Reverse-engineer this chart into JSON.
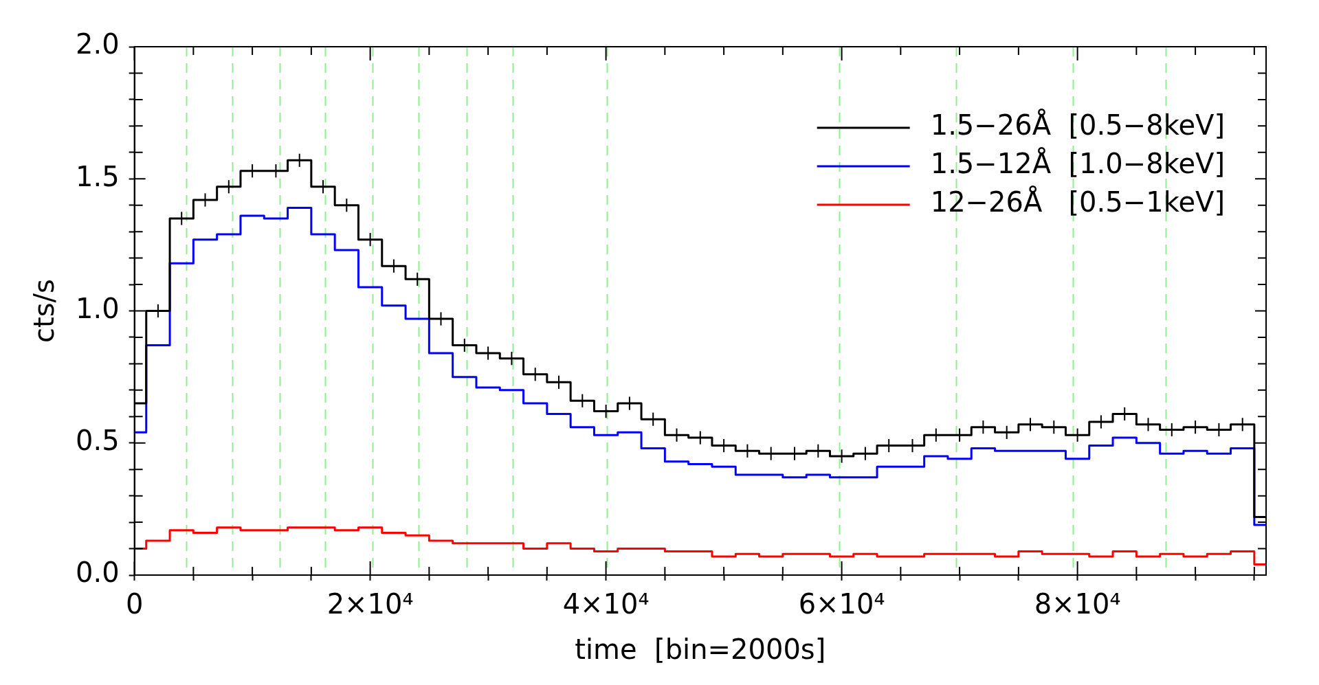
{
  "chart_data": {
    "type": "step",
    "xlabel": "time  [bin=2000s]",
    "ylabel": "cts/s",
    "x": [
      0,
      2000,
      4000,
      6000,
      8000,
      10000,
      12000,
      14000,
      16000,
      18000,
      20000,
      22000,
      24000,
      26000,
      28000,
      30000,
      32000,
      34000,
      36000,
      38000,
      40000,
      42000,
      44000,
      46000,
      48000,
      50000,
      52000,
      54000,
      56000,
      58000,
      60000,
      62000,
      64000,
      66000,
      68000,
      70000,
      72000,
      74000,
      76000,
      78000,
      80000,
      82000,
      84000,
      86000,
      88000,
      90000,
      92000,
      94000,
      96000
    ],
    "series": [
      {
        "name": "1.5−26Å  [0.5−8keV]",
        "color": "#000000",
        "values": [
          0.65,
          1.0,
          1.35,
          1.42,
          1.47,
          1.53,
          1.53,
          1.57,
          1.47,
          1.4,
          1.27,
          1.17,
          1.12,
          0.97,
          0.87,
          0.84,
          0.82,
          0.76,
          0.73,
          0.66,
          0.62,
          0.65,
          0.59,
          0.53,
          0.52,
          0.49,
          0.47,
          0.46,
          0.46,
          0.47,
          0.45,
          0.46,
          0.49,
          0.49,
          0.53,
          0.53,
          0.56,
          0.54,
          0.57,
          0.56,
          0.53,
          0.58,
          0.61,
          0.57,
          0.55,
          0.56,
          0.55,
          0.57,
          0.22
        ],
        "errors": [
          null,
          0.025,
          0.025,
          0.025,
          0.025,
          0.025,
          0.025,
          0.025,
          0.025,
          0.025,
          0.025,
          0.025,
          0.025,
          0.025,
          0.025,
          0.025,
          0.025,
          0.025,
          0.025,
          0.025,
          0.025,
          0.025,
          0.025,
          0.025,
          0.025,
          0.025,
          0.025,
          0.025,
          0.025,
          0.025,
          0.025,
          0.025,
          0.025,
          0.025,
          0.025,
          0.025,
          0.025,
          0.025,
          0.025,
          0.025,
          0.025,
          0.025,
          0.025,
          0.025,
          0.025,
          0.025,
          0.025,
          0.025,
          null
        ]
      },
      {
        "name": "1.5−12Å  [1.0−8keV]",
        "color": "#0000ff",
        "values": [
          0.54,
          0.87,
          1.18,
          1.27,
          1.29,
          1.36,
          1.35,
          1.39,
          1.29,
          1.23,
          1.09,
          1.02,
          0.97,
          0.84,
          0.75,
          0.71,
          0.7,
          0.65,
          0.61,
          0.56,
          0.53,
          0.54,
          0.48,
          0.43,
          0.42,
          0.41,
          0.38,
          0.38,
          0.37,
          0.38,
          0.37,
          0.37,
          0.41,
          0.41,
          0.45,
          0.44,
          0.48,
          0.47,
          0.47,
          0.47,
          0.44,
          0.49,
          0.52,
          0.5,
          0.46,
          0.47,
          0.46,
          0.48,
          0.19
        ]
      },
      {
        "name": "12−26Å   [0.5−1keV]",
        "color": "#ff0000",
        "values": [
          0.1,
          0.13,
          0.17,
          0.16,
          0.18,
          0.17,
          0.17,
          0.18,
          0.18,
          0.17,
          0.18,
          0.16,
          0.15,
          0.13,
          0.12,
          0.12,
          0.12,
          0.1,
          0.12,
          0.1,
          0.09,
          0.1,
          0.1,
          0.09,
          0.09,
          0.07,
          0.08,
          0.07,
          0.08,
          0.08,
          0.07,
          0.08,
          0.07,
          0.07,
          0.08,
          0.08,
          0.08,
          0.07,
          0.09,
          0.08,
          0.08,
          0.07,
          0.09,
          0.07,
          0.08,
          0.07,
          0.08,
          0.09,
          0.04
        ]
      }
    ],
    "xlim": [
      0,
      96000
    ],
    "xticks": [
      0,
      {
        "value": 5000,
        "label": null
      },
      {
        "value": 10000,
        "label": null
      },
      {
        "value": 15000,
        "label": null
      },
      {
        "value": 20000,
        "label": "2×10⁴"
      },
      {
        "value": 25000,
        "label": null
      },
      {
        "value": 30000,
        "label": null
      },
      {
        "value": 35000,
        "label": null
      },
      {
        "value": 40000,
        "label": "4×10⁴"
      },
      {
        "value": 45000,
        "label": null
      },
      {
        "value": 50000,
        "label": null
      },
      {
        "value": 55000,
        "label": null
      },
      {
        "value": 60000,
        "label": "6×10⁴"
      },
      {
        "value": 65000,
        "label": null
      },
      {
        "value": 70000,
        "label": null
      },
      {
        "value": 75000,
        "label": null
      },
      {
        "value": 80000,
        "label": "8×10⁴"
      },
      {
        "value": 85000,
        "label": null
      },
      {
        "value": 90000,
        "label": null
      },
      {
        "value": 95000,
        "label": null
      }
    ],
    "ylim": [
      0,
      2
    ],
    "yticks": [
      {
        "value": 0,
        "label": "0.0"
      },
      {
        "value": 0.1,
        "label": null
      },
      {
        "value": 0.2,
        "label": null
      },
      {
        "value": 0.3,
        "label": null
      },
      {
        "value": 0.4,
        "label": null
      },
      {
        "value": 0.5,
        "label": "0.5"
      },
      {
        "value": 0.6,
        "label": null
      },
      {
        "value": 0.7,
        "label": null
      },
      {
        "value": 0.8,
        "label": null
      },
      {
        "value": 0.9,
        "label": null
      },
      {
        "value": 1,
        "label": "1.0"
      },
      {
        "value": 1.1,
        "label": null
      },
      {
        "value": 1.2,
        "label": null
      },
      {
        "value": 1.3,
        "label": null
      },
      {
        "value": 1.4,
        "label": null
      },
      {
        "value": 1.5,
        "label": "1.5"
      },
      {
        "value": 1.6,
        "label": null
      },
      {
        "value": 1.7,
        "label": null
      },
      {
        "value": 1.8,
        "label": null
      },
      {
        "value": 1.9,
        "label": null
      },
      {
        "value": 2,
        "label": "2.0"
      }
    ],
    "ref_lines": [
      {
        "axis": "x",
        "value": 4400,
        "color": "#90ee90",
        "line_style": "dashed"
      },
      {
        "axis": "x",
        "value": 8300,
        "color": "#90ee90",
        "line_style": "dashed"
      },
      {
        "axis": "x",
        "value": 12300,
        "color": "#90ee90",
        "line_style": "dashed"
      },
      {
        "axis": "x",
        "value": 16200,
        "color": "#90ee90",
        "line_style": "dashed"
      },
      {
        "axis": "x",
        "value": 20200,
        "color": "#90ee90",
        "line_style": "dashed"
      },
      {
        "axis": "x",
        "value": 24100,
        "color": "#90ee90",
        "line_style": "dashed"
      },
      {
        "axis": "x",
        "value": 28200,
        "color": "#90ee90",
        "line_style": "dashed"
      },
      {
        "axis": "x",
        "value": 32100,
        "color": "#90ee90",
        "line_style": "dashed"
      },
      {
        "axis": "x",
        "value": 40100,
        "color": "#90ee90",
        "line_style": "dashed"
      },
      {
        "axis": "x",
        "value": 59800,
        "color": "#90ee90",
        "line_style": "dashed"
      },
      {
        "axis": "x",
        "value": 69700,
        "color": "#90ee90",
        "line_style": "dashed"
      },
      {
        "axis": "x",
        "value": 79600,
        "color": "#90ee90",
        "line_style": "dashed"
      },
      {
        "axis": "x",
        "value": 87500,
        "color": "#90ee90",
        "line_style": "dashed"
      }
    ],
    "legend": "top right",
    "line_style": "solid"
  }
}
